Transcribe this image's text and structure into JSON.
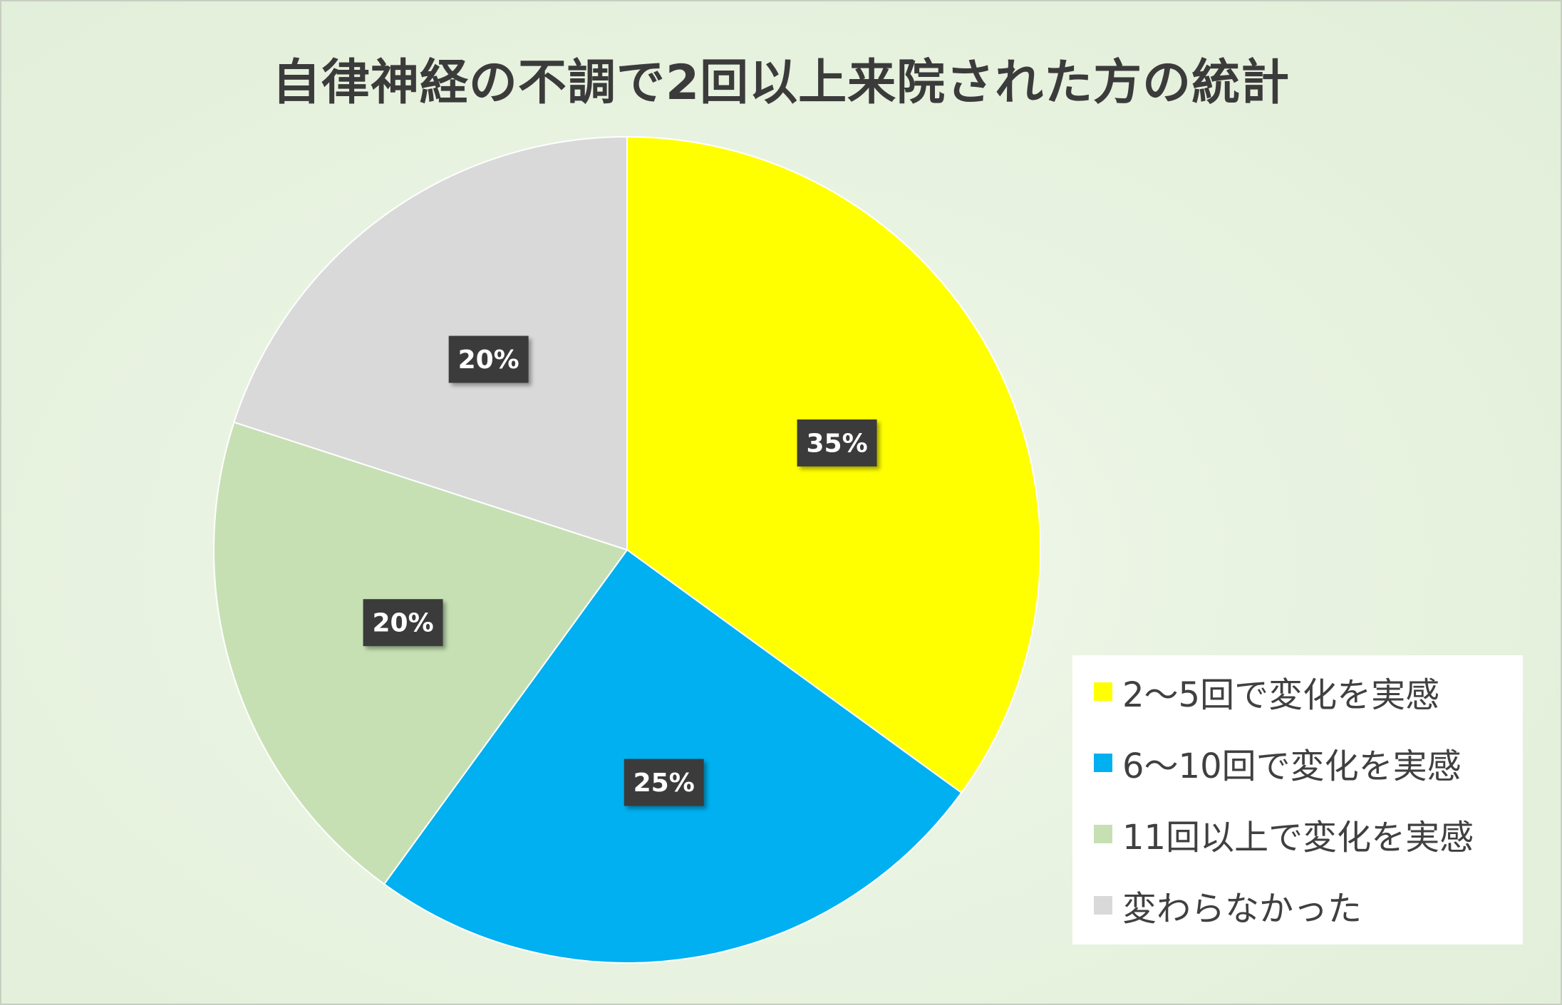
{
  "chart_data": {
    "type": "pie",
    "title": "自律神経の不調で2回以上来院された方の統計",
    "legend_position": "bottom-right",
    "slices": [
      {
        "label": "2〜5回で変化を実感",
        "value": 35,
        "display": "35%",
        "color": "#FFFF00"
      },
      {
        "label": "6〜10回で変化を実感",
        "value": 25,
        "display": "25%",
        "color": "#00B0F0"
      },
      {
        "label": "11回以上で変化を実感",
        "value": 20,
        "display": "20%",
        "color": "#C6E0B4"
      },
      {
        "label": "変わらなかった",
        "value": 20,
        "display": "20%",
        "color": "#D9D9D9"
      }
    ],
    "data_label_background": "#3A3A3A"
  }
}
